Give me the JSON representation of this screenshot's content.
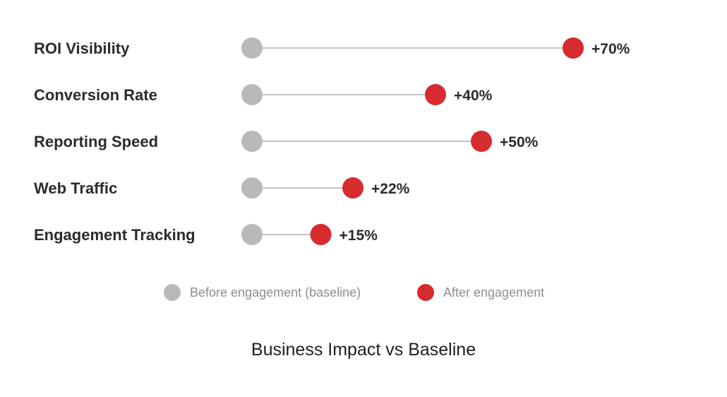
{
  "chart_data": {
    "type": "dumbbell",
    "title": "Business Impact vs Baseline",
    "categories": [
      "ROI Visibility",
      "Conversion Rate",
      "Reporting Speed",
      "Web Traffic",
      "Engagement Tracking"
    ],
    "series": [
      {
        "name": "Before engagement (baseline)",
        "values": [
          0,
          0,
          0,
          0,
          0
        ],
        "color": "#b9b9b9"
      },
      {
        "name": "After engagement",
        "values": [
          70,
          40,
          50,
          22,
          15
        ],
        "color": "#d62b2f"
      }
    ],
    "value_labels": [
      "+70%",
      "+40%",
      "+50%",
      "+22%",
      "+15%"
    ],
    "xlim": [
      0,
      70
    ],
    "connector_color": "#c4c4c4",
    "grid": false,
    "legend_position": "bottom"
  }
}
